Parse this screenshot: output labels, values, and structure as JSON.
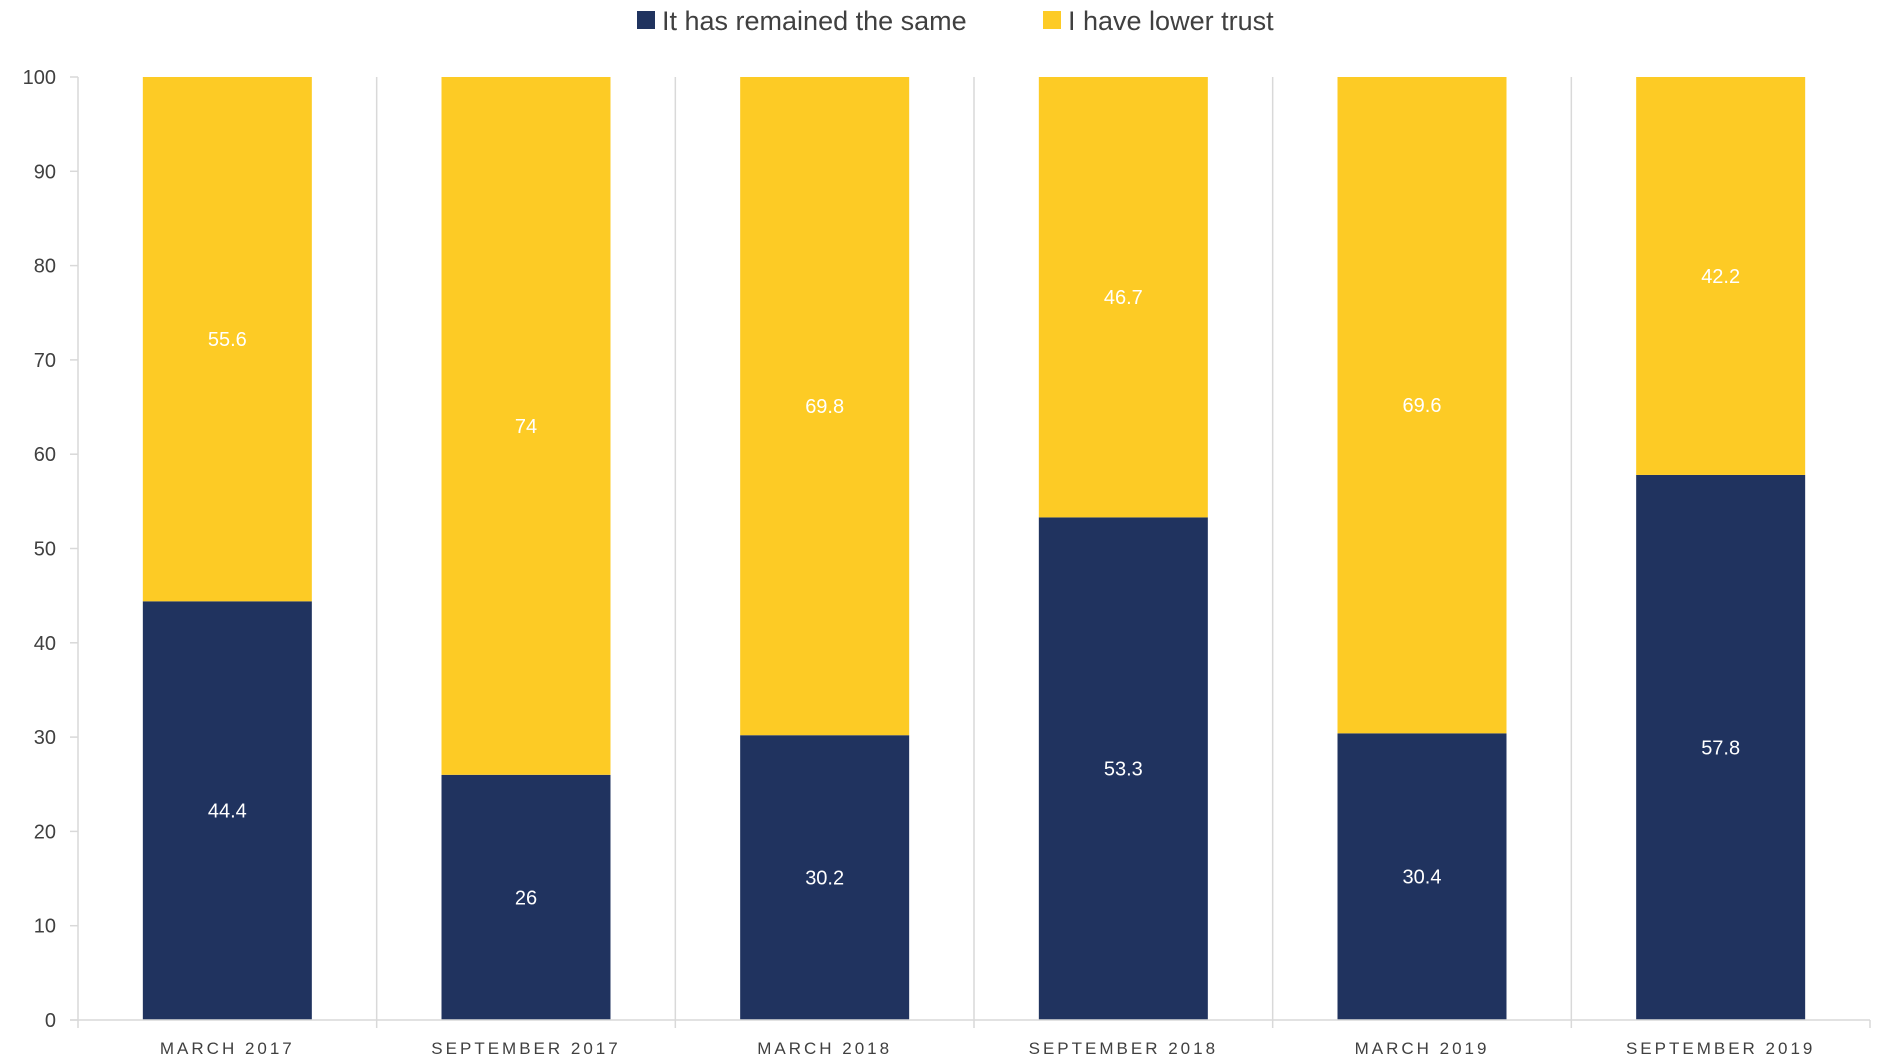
{
  "chart_data": {
    "type": "bar",
    "stacked": true,
    "categories": [
      "MARCH 2017",
      "SEPTEMBER 2017",
      "MARCH 2018",
      "SEPTEMBER 2018",
      "MARCH 2019",
      "SEPTEMBER 2019"
    ],
    "series": [
      {
        "name": "It has remained the same",
        "color": "#20335f",
        "values": [
          44.4,
          26,
          30.2,
          53.3,
          30.4,
          57.8
        ],
        "labels": [
          "44.4",
          "26",
          "30.2",
          "53.3",
          "30.4",
          "57.8"
        ]
      },
      {
        "name": "I have lower trust",
        "color": "#fdcb25",
        "values": [
          55.6,
          74,
          69.8,
          46.7,
          69.6,
          42.2
        ],
        "labels": [
          "55.6",
          "74",
          "69.8",
          "46.7",
          "69.6",
          "42.2"
        ]
      }
    ],
    "title": "",
    "xlabel": "",
    "ylabel": "",
    "ylim": [
      0,
      100
    ],
    "yticks": [
      "0",
      "10",
      "20",
      "30",
      "40",
      "50",
      "60",
      "70",
      "80",
      "90",
      "100"
    ],
    "legend_position": "top-center",
    "grid": "vertical-separators",
    "axis_color": "#d9d9d9",
    "text_color": "#404040"
  }
}
